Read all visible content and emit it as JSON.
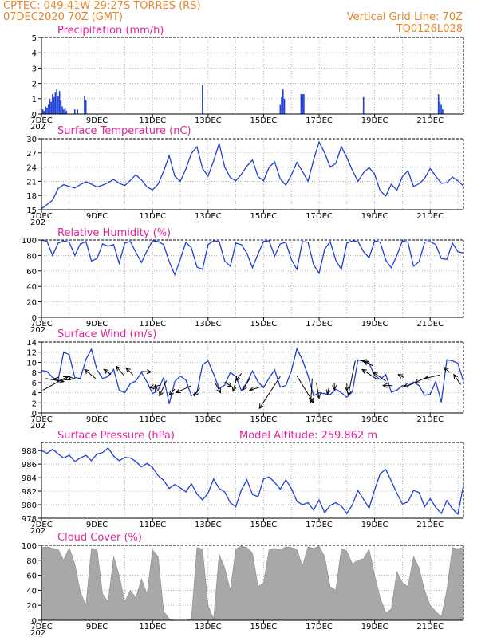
{
  "header": {
    "left_line1": "CPTEC:   049:41W-29:27S   TORRES (RS)",
    "left_line2": "07DEC2020 70Z (GMT)",
    "right_line1": "Vertical Grid Line: 70Z",
    "right_line2": "TQ0126L028"
  },
  "colors": {
    "header": "#e8862a",
    "title": "#e0249a",
    "series": "#1f3fd6",
    "cloud": "#a8a8a8",
    "arrow": "#000000"
  },
  "x_tick_labels": [
    "7DEC",
    "9DEC",
    "11DEC",
    "13DEC",
    "15DEC",
    "17DEC",
    "19DEC",
    "21DEC"
  ],
  "year_stub": "202",
  "chart_data": [
    {
      "id": "precip",
      "type": "bar",
      "title": "Precipitation (mm/h)",
      "ylim": [
        0,
        5
      ],
      "yticks": [
        0,
        1,
        2,
        3,
        4,
        5
      ],
      "xlim": [
        7.0,
        22.2
      ],
      "bars": [
        [
          7.05,
          0.3
        ],
        [
          7.1,
          0.2
        ],
        [
          7.15,
          0.5
        ],
        [
          7.2,
          0.4
        ],
        [
          7.25,
          0.6
        ],
        [
          7.3,
          1.0
        ],
        [
          7.35,
          0.8
        ],
        [
          7.4,
          1.3
        ],
        [
          7.45,
          1.1
        ],
        [
          7.5,
          1.4
        ],
        [
          7.55,
          1.6
        ],
        [
          7.6,
          1.2
        ],
        [
          7.65,
          1.5
        ],
        [
          7.7,
          0.9
        ],
        [
          7.75,
          0.5
        ],
        [
          7.8,
          0.3
        ],
        [
          7.85,
          0.4
        ],
        [
          7.9,
          0.2
        ],
        [
          8.2,
          0.3
        ],
        [
          8.3,
          0.3
        ],
        [
          8.55,
          1.2
        ],
        [
          8.6,
          0.9
        ],
        [
          12.8,
          1.9
        ],
        [
          15.6,
          0.6
        ],
        [
          15.65,
          1.1
        ],
        [
          15.7,
          1.6
        ],
        [
          15.75,
          1.0
        ],
        [
          16.35,
          1.3
        ],
        [
          16.4,
          1.3
        ],
        [
          16.45,
          1.3
        ],
        [
          18.6,
          1.1
        ],
        [
          21.3,
          1.3
        ],
        [
          21.35,
          0.8
        ],
        [
          21.4,
          0.6
        ],
        [
          21.45,
          0.3
        ]
      ]
    },
    {
      "id": "temp",
      "type": "line",
      "title": "Surface Temperature (nC)",
      "ylim": [
        15,
        30
      ],
      "yticks": [
        15,
        18,
        21,
        24,
        27,
        30
      ],
      "xlim": [
        7.0,
        22.2
      ],
      "x": [
        7.0,
        7.2,
        7.4,
        7.6,
        7.8,
        8.0,
        8.2,
        8.4,
        8.6,
        8.8,
        9.0,
        9.2,
        9.4,
        9.6,
        9.8,
        10.0,
        10.2,
        10.4,
        10.6,
        10.8,
        11.0,
        11.2,
        11.4,
        11.6,
        11.8,
        12.0,
        12.2,
        12.4,
        12.6,
        12.8,
        13.0,
        13.2,
        13.4,
        13.6,
        13.8,
        14.0,
        14.2,
        14.4,
        14.6,
        14.8,
        15.0,
        15.2,
        15.4,
        15.6,
        15.8,
        16.0,
        16.2,
        16.4,
        16.6,
        16.8,
        17.0,
        17.2,
        17.4,
        17.6,
        17.8,
        18.0,
        18.2,
        18.4,
        18.6,
        18.8,
        19.0,
        19.2,
        19.4,
        19.6,
        19.8,
        20.0,
        20.2,
        20.4,
        20.6,
        20.8,
        21.0,
        21.2,
        21.4,
        21.6,
        21.8,
        22.0,
        22.2
      ],
      "values": [
        15.2,
        16.1,
        17.0,
        19.5,
        20.3,
        19.9,
        19.6,
        20.3,
        20.9,
        20.4,
        19.8,
        20.2,
        20.7,
        21.4,
        20.6,
        20.1,
        21.2,
        22.4,
        21.3,
        19.8,
        19.2,
        20.4,
        23.1,
        26.4,
        22.1,
        21.0,
        23.6,
        26.9,
        28.3,
        23.7,
        22.1,
        25.3,
        29.0,
        24.0,
        21.8,
        21.1,
        22.5,
        24.2,
        25.5,
        22.0,
        21.1,
        24.0,
        25.1,
        21.5,
        20.2,
        22.3,
        25.0,
        23.1,
        21.0,
        25.5,
        29.3,
        27.0,
        24.0,
        24.8,
        28.3,
        26.0,
        23.3,
        21.0,
        22.8,
        23.9,
        22.5,
        19.0,
        17.9,
        20.4,
        19.1,
        22.0,
        23.2,
        19.9,
        20.5,
        21.6,
        23.7,
        22.1,
        20.6,
        20.7,
        21.9,
        21.1,
        20.0
      ]
    },
    {
      "id": "rh",
      "type": "line",
      "title": "Relative Humidity (%)",
      "ylim": [
        0,
        100
      ],
      "yticks": [
        0,
        20,
        40,
        60,
        80,
        100
      ],
      "xlim": [
        7.0,
        22.2
      ],
      "x": [
        7.0,
        7.2,
        7.4,
        7.6,
        7.8,
        8.0,
        8.2,
        8.4,
        8.6,
        8.8,
        9.0,
        9.2,
        9.4,
        9.6,
        9.8,
        10.0,
        10.2,
        10.4,
        10.6,
        10.8,
        11.0,
        11.2,
        11.4,
        11.6,
        11.8,
        12.0,
        12.2,
        12.4,
        12.6,
        12.8,
        13.0,
        13.2,
        13.4,
        13.6,
        13.8,
        14.0,
        14.2,
        14.4,
        14.6,
        14.8,
        15.0,
        15.2,
        15.4,
        15.6,
        15.8,
        16.0,
        16.2,
        16.4,
        16.6,
        16.8,
        17.0,
        17.2,
        17.4,
        17.6,
        17.8,
        18.0,
        18.2,
        18.4,
        18.6,
        18.8,
        19.0,
        19.2,
        19.4,
        19.6,
        19.8,
        20.0,
        20.2,
        20.4,
        20.6,
        20.8,
        21.0,
        21.2,
        21.4,
        21.6,
        21.8,
        22.0,
        22.2
      ],
      "values": [
        100,
        98,
        80,
        96,
        99,
        97,
        80,
        95,
        98,
        73,
        76,
        95,
        92,
        94,
        70,
        96,
        98,
        84,
        71,
        86,
        99,
        98,
        94,
        72,
        55,
        75,
        97,
        90,
        65,
        62,
        94,
        99,
        98,
        73,
        66,
        96,
        94,
        83,
        64,
        82,
        98,
        99,
        79,
        95,
        97,
        75,
        62,
        98,
        97,
        68,
        57,
        88,
        98,
        74,
        62,
        96,
        99,
        98,
        85,
        77,
        99,
        97,
        74,
        64,
        80,
        99,
        97,
        66,
        72,
        97,
        98,
        94,
        76,
        75,
        96,
        85,
        83
      ]
    },
    {
      "id": "wind",
      "type": "line",
      "title": "Surface Wind (m/s)",
      "ylim": [
        0,
        14
      ],
      "yticks": [
        0,
        2,
        4,
        6,
        8,
        10,
        12,
        14
      ],
      "xlim": [
        7.0,
        22.2
      ],
      "x": [
        7.0,
        7.2,
        7.4,
        7.6,
        7.8,
        8.0,
        8.2,
        8.4,
        8.6,
        8.8,
        9.0,
        9.2,
        9.4,
        9.6,
        9.8,
        10.0,
        10.2,
        10.4,
        10.6,
        10.8,
        11.0,
        11.2,
        11.4,
        11.6,
        11.8,
        12.0,
        12.2,
        12.4,
        12.6,
        12.8,
        13.0,
        13.2,
        13.4,
        13.6,
        13.8,
        14.0,
        14.2,
        14.4,
        14.6,
        14.8,
        15.0,
        15.2,
        15.4,
        15.6,
        15.8,
        16.0,
        16.2,
        16.4,
        16.6,
        16.8,
        17.0,
        17.2,
        17.4,
        17.6,
        17.8,
        18.0,
        18.2,
        18.4,
        18.6,
        18.8,
        19.0,
        19.2,
        19.4,
        19.6,
        19.8,
        20.0,
        20.2,
        20.4,
        20.6,
        20.8,
        21.0,
        21.2,
        21.4,
        21.6,
        21.8,
        22.0,
        22.2
      ],
      "values": [
        8.4,
        8.2,
        7.0,
        6.5,
        12.0,
        11.5,
        7.0,
        6.8,
        10.6,
        12.6,
        8.5,
        6.8,
        7.2,
        8.6,
        4.5,
        4.0,
        5.8,
        6.3,
        8.0,
        6.1,
        3.8,
        4.5,
        7.0,
        1.8,
        6.2,
        7.3,
        6.5,
        3.4,
        4.1,
        9.5,
        10.3,
        7.7,
        4.8,
        5.5,
        8.0,
        7.2,
        4.4,
        6.0,
        8.3,
        6.1,
        5.0,
        6.9,
        8.5,
        5.1,
        5.4,
        8.3,
        12.7,
        10.5,
        7.4,
        3.4,
        4.0,
        3.8,
        3.6,
        4.7,
        4.0,
        3.1,
        4.2,
        10.5,
        10.2,
        9.8,
        7.4,
        6.6,
        7.6,
        4.1,
        4.5,
        5.4,
        5.3,
        6.1,
        5.4,
        3.5,
        3.7,
        6.2,
        2.1,
        10.5,
        10.3,
        9.8,
        6.2
      ],
      "arrows": [
        [
          7.05,
          4.5,
          7.95,
          7.2
        ],
        [
          7.15,
          6.8,
          7.8,
          6.2
        ],
        [
          8.05,
          6.5,
          7.45,
          6.7
        ],
        [
          8.3,
          6.6,
          7.95,
          7.2
        ],
        [
          8.95,
          6.8,
          8.55,
          8.6
        ],
        [
          9.5,
          7.6,
          9.25,
          8.6
        ],
        [
          9.95,
          7.5,
          9.7,
          9.2
        ],
        [
          10.3,
          7.5,
          10.05,
          8.9
        ],
        [
          10.6,
          8.2,
          10.95,
          8.1
        ],
        [
          11.1,
          4.2,
          11.1,
          5.5
        ],
        [
          11.3,
          5.5,
          10.9,
          5.0
        ],
        [
          11.5,
          6.4,
          11.25,
          3.4
        ],
        [
          11.8,
          4.7,
          11.6,
          3.5
        ],
        [
          12.4,
          5.4,
          11.85,
          4.0
        ],
        [
          12.7,
          4.9,
          12.5,
          3.4
        ],
        [
          13.25,
          6.0,
          13.45,
          4.0
        ],
        [
          13.6,
          6.1,
          13.85,
          5.2
        ],
        [
          14.0,
          6.3,
          13.9,
          4.3
        ],
        [
          14.2,
          7.8,
          14.0,
          6.4
        ],
        [
          14.5,
          6.8,
          14.25,
          4.5
        ],
        [
          15.0,
          5.3,
          14.5,
          4.5
        ],
        [
          15.6,
          7.2,
          14.85,
          0.9
        ],
        [
          16.2,
          7.3,
          16.8,
          2.0
        ],
        [
          16.75,
          6.8,
          16.7,
          2.1
        ],
        [
          16.9,
          6.0,
          17.0,
          2.9
        ],
        [
          17.35,
          4.9,
          17.3,
          3.7
        ],
        [
          17.55,
          6.0,
          17.55,
          4.6
        ],
        [
          18.0,
          5.8,
          18.0,
          4.4
        ],
        [
          18.3,
          10.3,
          18.05,
          3.5
        ],
        [
          18.8,
          10.1,
          18.55,
          10.3
        ],
        [
          18.95,
          9.3,
          18.6,
          10.2
        ],
        [
          19.1,
          6.6,
          18.55,
          8.6
        ],
        [
          19.4,
          6.3,
          18.95,
          8.0
        ],
        [
          19.65,
          5.4,
          19.3,
          5.4
        ],
        [
          20.05,
          7.0,
          19.85,
          7.6
        ],
        [
          20.4,
          5.8,
          20.05,
          5.2
        ],
        [
          20.9,
          7.1,
          20.45,
          6.0
        ],
        [
          21.35,
          7.5,
          20.8,
          6.8
        ],
        [
          21.7,
          8.0,
          21.5,
          9.0
        ],
        [
          22.1,
          5.6,
          21.85,
          7.6
        ]
      ]
    },
    {
      "id": "pressure",
      "type": "line",
      "title": "Surface Pressure (hPa)",
      "annotation": "Model Altitude: 259.862 m",
      "ylim": [
        978,
        989.2
      ],
      "yticks": [
        978,
        980,
        982,
        984,
        986,
        988
      ],
      "xlim": [
        7.0,
        22.2
      ],
      "x": [
        7.0,
        7.2,
        7.4,
        7.6,
        7.8,
        8.0,
        8.2,
        8.4,
        8.6,
        8.8,
        9.0,
        9.2,
        9.4,
        9.6,
        9.8,
        10.0,
        10.2,
        10.4,
        10.6,
        10.8,
        11.0,
        11.2,
        11.4,
        11.6,
        11.8,
        12.0,
        12.2,
        12.4,
        12.6,
        12.8,
        13.0,
        13.2,
        13.4,
        13.6,
        13.8,
        14.0,
        14.2,
        14.4,
        14.6,
        14.8,
        15.0,
        15.2,
        15.4,
        15.6,
        15.8,
        16.0,
        16.2,
        16.4,
        16.6,
        16.8,
        17.0,
        17.2,
        17.4,
        17.6,
        17.8,
        18.0,
        18.2,
        18.4,
        18.6,
        18.8,
        19.0,
        19.2,
        19.4,
        19.6,
        19.8,
        20.0,
        20.2,
        20.4,
        20.6,
        20.8,
        21.0,
        21.2,
        21.4,
        21.6,
        21.8,
        22.0,
        22.2
      ],
      "values": [
        988.0,
        987.6,
        988.2,
        987.5,
        986.9,
        987.3,
        986.4,
        986.9,
        987.3,
        986.5,
        987.5,
        987.7,
        988.4,
        987.2,
        986.5,
        987.0,
        986.9,
        986.4,
        985.6,
        986.1,
        985.5,
        984.3,
        983.6,
        982.4,
        983.0,
        982.5,
        981.9,
        983.1,
        981.6,
        980.7,
        981.7,
        983.8,
        982.4,
        981.9,
        980.3,
        979.7,
        982.2,
        983.7,
        981.5,
        981.2,
        983.8,
        984.1,
        983.3,
        982.3,
        983.7,
        982.4,
        980.5,
        980.0,
        980.3,
        979.2,
        980.7,
        978.8,
        979.9,
        980.3,
        979.8,
        978.7,
        980.0,
        982.1,
        980.8,
        979.5,
        982.2,
        984.6,
        985.2,
        983.5,
        981.7,
        980.1,
        980.4,
        982.1,
        981.8,
        979.7,
        980.9,
        979.6,
        978.7,
        980.6,
        979.4,
        978.6,
        982.9
      ]
    },
    {
      "id": "cloud",
      "type": "area",
      "title": "Cloud Cover (%)",
      "ylim": [
        0,
        100
      ],
      "yticks": [
        0,
        20,
        40,
        60,
        80,
        100
      ],
      "xlim": [
        7.0,
        22.2
      ],
      "x": [
        7.0,
        7.2,
        7.4,
        7.6,
        7.8,
        8.0,
        8.2,
        8.4,
        8.6,
        8.8,
        9.0,
        9.2,
        9.4,
        9.6,
        9.8,
        10.0,
        10.2,
        10.4,
        10.6,
        10.8,
        11.0,
        11.2,
        11.4,
        11.6,
        11.8,
        12.0,
        12.2,
        12.4,
        12.6,
        12.8,
        13.0,
        13.2,
        13.4,
        13.6,
        13.8,
        14.0,
        14.2,
        14.4,
        14.6,
        14.8,
        15.0,
        15.2,
        15.4,
        15.6,
        15.8,
        16.0,
        16.2,
        16.4,
        16.6,
        16.8,
        17.0,
        17.2,
        17.4,
        17.6,
        17.8,
        18.0,
        18.2,
        18.4,
        18.6,
        18.8,
        19.0,
        19.2,
        19.4,
        19.6,
        19.8,
        20.0,
        20.2,
        20.4,
        20.6,
        20.8,
        21.0,
        21.2,
        21.4,
        21.6,
        21.8,
        22.0,
        22.2
      ],
      "values": [
        97,
        98,
        96,
        95,
        80,
        97,
        75,
        38,
        20,
        96,
        95,
        35,
        25,
        85,
        60,
        25,
        40,
        30,
        55,
        35,
        94,
        85,
        12,
        2,
        0,
        0,
        0,
        2,
        97,
        95,
        20,
        2,
        88,
        70,
        40,
        95,
        99,
        97,
        90,
        45,
        50,
        95,
        96,
        94,
        98,
        97,
        95,
        72,
        98,
        96,
        99,
        85,
        45,
        40,
        96,
        92,
        75,
        80,
        82,
        95,
        60,
        30,
        10,
        15,
        65,
        50,
        45,
        85,
        70,
        40,
        20,
        12,
        5,
        40,
        97,
        95,
        98
      ]
    }
  ]
}
